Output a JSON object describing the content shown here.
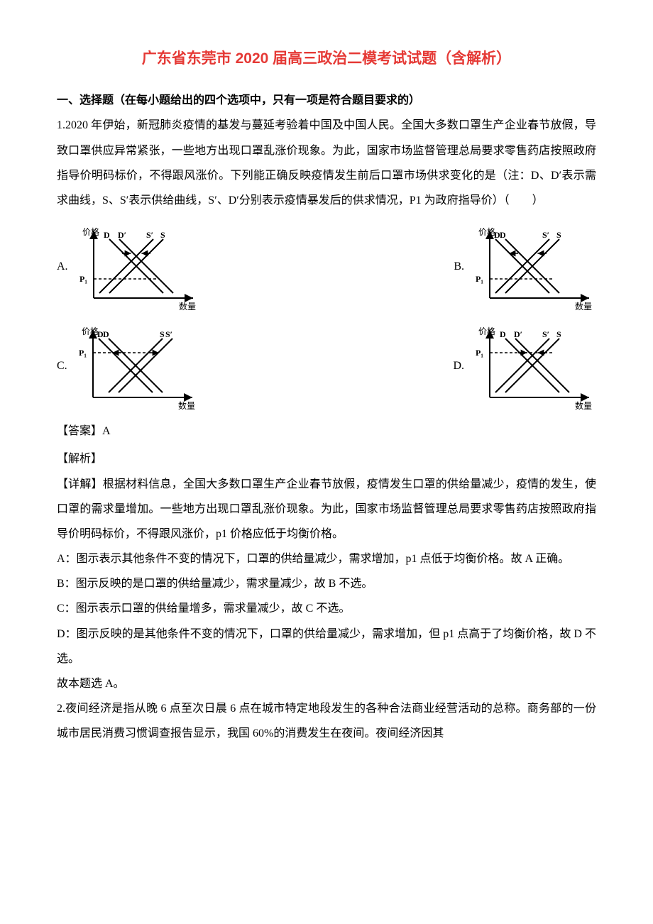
{
  "title": "广东省东莞市 2020 届高三政治二模考试试题（含解析）",
  "section_header": "一、选择题（在每小题给出的四个选项中，只有一项是符合题目要求的）",
  "q1": {
    "text": "1.2020 年伊始，新冠肺炎疫情的基发与蔓延考验着中国及中国人民。全国大多数口罩生产企业春节放假，导致口罩供应异常紧张，一些地方出现口罩乱涨价现象。为此，国家市场监督管理总局要求零售药店按照政府指导价明码标价，不得跟风涨价。下列能正确反映疫情发生前后口罩市场供求变化的是（注：D、D′表示需求曲线，S、S′表示供给曲线，S′、D′分别表示疫情暴发后的供求情况，P1 为政府指导价）（　　）",
    "answer_label": "【答案】A",
    "analysis_label": "【解析】",
    "detail": "【详解】根据材料信息，全国大多数口罩生产企业春节放假，疫情发生口罩的供给量减少，疫情的发生，使口罩的需求量增加。一些地方出现口罩乱涨价现象。为此，国家市场监督管理总局要求零售药店按照政府指导价明码标价，不得跟风涨价，p1 价格应低于均衡价格。",
    "opt_a": "A：图示表示其他条件不变的情况下，口罩的供给量减少，需求增加，p1 点低于均衡价格。故 A 正确。",
    "opt_b": "B：图示反映的是口罩的供给量减少，需求量减少，故 B 不选。",
    "opt_c": "C：图示表示口罩的供给量增多，需求量减少，故 C 不选。",
    "opt_d": "D：图示反映的是其他条件不变的情况下，口罩的供给量减少，需求增加，但 p1 点高于了均衡价格，故 D 不选。",
    "conclusion": "故本题选 A。"
  },
  "q2": {
    "text": "2.夜间经济是指从晚 6 点至次日晨 6 点在城市特定地段发生的各种合法商业经营活动的总称。商务部的一份城市居民消费习惯调查报告显示，我国 60%的消费发生在夜间。夜间经济因其"
  },
  "chart": {
    "axis_y": "价格",
    "axis_x": "数量",
    "labels": {
      "D": "D",
      "Dp": "D′",
      "S": "S",
      "Sp": "S′",
      "P1": "P₁"
    },
    "colors": {
      "axis": "#000000",
      "line": "#000000",
      "dash": "#000000",
      "text": "#000000",
      "bg": "#ffffff"
    },
    "stroke_width": 2,
    "dash_pattern": "4,3",
    "arrow_size": 6,
    "font_size": 12,
    "options": {
      "A": {
        "d_shift": "right",
        "s_shift": "left",
        "p1_pos": "below"
      },
      "B": {
        "d_shift": "left",
        "s_shift": "left",
        "p1_pos": "below"
      },
      "C": {
        "d_shift": "left",
        "s_shift": "right",
        "p1_pos": "above"
      },
      "D": {
        "d_shift": "right",
        "s_shift": "left",
        "p1_pos": "above"
      }
    }
  },
  "option_letters": {
    "A": "A.",
    "B": "B.",
    "C": "C.",
    "D": "D."
  }
}
